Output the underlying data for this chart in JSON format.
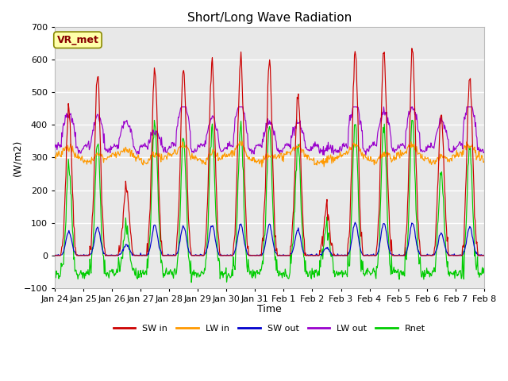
{
  "title": "Short/Long Wave Radiation",
  "xlabel": "Time",
  "ylabel": "(W/m2)",
  "ylim": [
    -100,
    700
  ],
  "xlim": [
    0,
    15
  ],
  "yticks": [
    -100,
    0,
    100,
    200,
    300,
    400,
    500,
    600,
    700
  ],
  "xtick_labels": [
    "Jan 24",
    "Jan 25",
    "Jan 26",
    "Jan 27",
    "Jan 28",
    "Jan 29",
    "Jan 30",
    "Jan 31",
    "Feb 1",
    "Feb 2",
    "Feb 3",
    "Feb 4",
    "Feb 5",
    "Feb 6",
    "Feb 7",
    "Feb 8"
  ],
  "series": {
    "SW_in": {
      "color": "#cc0000",
      "label": "SW in"
    },
    "LW_in": {
      "color": "#ff9900",
      "label": "LW in"
    },
    "SW_out": {
      "color": "#0000cc",
      "label": "SW out"
    },
    "LW_out": {
      "color": "#9900cc",
      "label": "LW out"
    },
    "Rnet": {
      "color": "#00cc00",
      "label": "Rnet"
    }
  },
  "annotation": {
    "text": "VR_met",
    "fontsize": 9,
    "bbox_facecolor": "#ffffaa",
    "bbox_edgecolor": "#888800"
  },
  "background_color": "#e8e8e8",
  "grid_color": "#ffffff",
  "legend_ncol": 5,
  "day_peaks_SW": [
    450,
    545,
    210,
    575,
    575,
    590,
    610,
    595,
    490,
    150,
    630,
    630,
    630,
    430,
    550
  ],
  "lw_out_day_peaks": [
    415,
    425,
    395,
    380,
    440,
    415,
    440,
    410,
    380,
    345,
    440,
    440,
    425,
    420,
    440
  ],
  "lw_in_base": 300,
  "sw_out_max": 100,
  "rnet_night": -55
}
